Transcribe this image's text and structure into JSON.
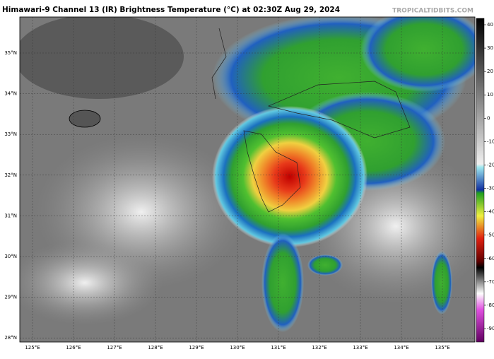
{
  "header": {
    "title": "Himawari-9 Channel 13 (IR) Brightness Temperature (°C) at 02:30Z Aug 29, 2024",
    "watermark": "TROPICALTIDBITS.COM"
  },
  "map": {
    "lat_labels": [
      "35°N",
      "34°N",
      "33°N",
      "32°N",
      "31°N",
      "30°N",
      "29°N",
      "28°N"
    ],
    "lon_labels": [
      "125°E",
      "126°E",
      "127°E",
      "128°E",
      "129°E",
      "130°E",
      "131°E",
      "132°E",
      "133°E",
      "134°E",
      "135°E"
    ]
  },
  "colorbar": {
    "ticks": [
      40,
      30,
      20,
      10,
      0,
      -10,
      -20,
      -30,
      -40,
      -50,
      -60,
      -70,
      -80,
      -90
    ]
  }
}
